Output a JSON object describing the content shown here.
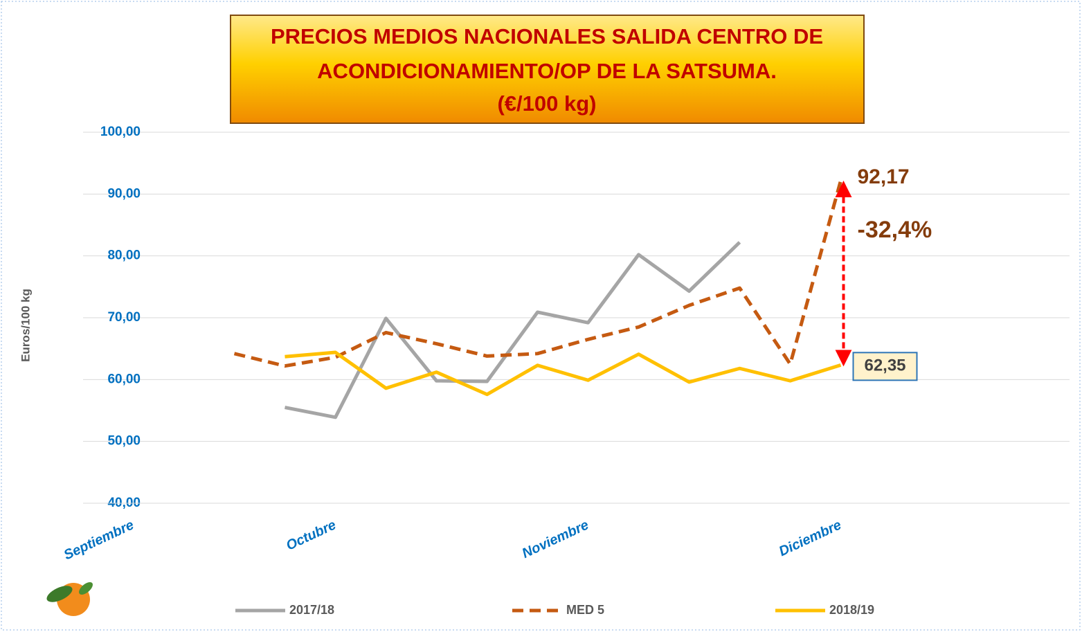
{
  "chart_data": {
    "type": "line",
    "title_lines": [
      "PRECIOS MEDIOS NACIONALES SALIDA CENTRO DE",
      "ACONDICIONAMIENTO/OP  DE LA SATSUMA.",
      "(€/100 kg)"
    ],
    "y_label": "Euros/100 kg",
    "categories": [
      "Septiembre",
      null,
      null,
      null,
      "Octubre",
      null,
      null,
      null,
      null,
      "Noviembre",
      null,
      null,
      null,
      null,
      "Diciembre",
      null,
      null,
      null,
      null
    ],
    "series": [
      {
        "name": "2017/18",
        "color": "#a5a5a5",
        "dash": false,
        "values": [
          null,
          null,
          null,
          55.5,
          53.9,
          69.9,
          59.8,
          59.7,
          70.9,
          69.2,
          80.2,
          74.3,
          82.2,
          null,
          null,
          null,
          null,
          null,
          null
        ]
      },
      {
        "name": "MED 5",
        "color": "#c55a11",
        "dash": true,
        "values": [
          null,
          null,
          64.2,
          62.2,
          63.6,
          67.6,
          65.8,
          63.8,
          64.2,
          66.5,
          68.5,
          72.0,
          74.8,
          62.5,
          92.17,
          null,
          null,
          null,
          null
        ],
        "value_labels": [
          null,
          null,
          null,
          null,
          null,
          null,
          null,
          null,
          null,
          null,
          null,
          null,
          null,
          null,
          "92,17",
          null,
          null,
          null,
          null
        ]
      },
      {
        "name": "2018/19",
        "color": "#ffc000",
        "dash": false,
        "values": [
          null,
          null,
          null,
          63.7,
          64.4,
          58.6,
          61.2,
          57.6,
          62.3,
          59.9,
          64.1,
          59.6,
          61.8,
          59.8,
          62.35,
          null,
          null,
          null,
          null
        ],
        "value_labels": [
          null,
          null,
          null,
          null,
          null,
          null,
          null,
          null,
          null,
          null,
          null,
          null,
          null,
          null,
          "62,35",
          null,
          null,
          null,
          null
        ]
      }
    ],
    "annotation": "-32,4%",
    "ylim": [
      40,
      100
    ],
    "yticks": [
      {
        "value": 40,
        "label": "40,00"
      },
      {
        "value": 50,
        "label": "50,00"
      },
      {
        "value": 60,
        "label": "60,00"
      },
      {
        "value": 70,
        "label": "70,00"
      },
      {
        "value": 80,
        "label": "80,00"
      },
      {
        "value": 90,
        "label": "90,00"
      },
      {
        "value": 100,
        "label": "100,00"
      }
    ],
    "grid": true,
    "legend": "bottom"
  }
}
